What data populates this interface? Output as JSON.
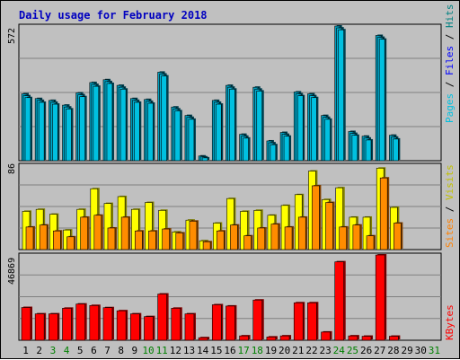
{
  "chart_data": {
    "type": "bar",
    "title": "Daily usage for February 2018",
    "colors": {
      "pages": "#00c0e0",
      "pages_shadow": "#0a6070",
      "hits": "#00a0c0",
      "files": "#00b4d8",
      "visits": "#ffff00",
      "visits_shadow": "#808000",
      "sites": "#ff8c00",
      "sites_shadow": "#804000",
      "kbytes": "#ff0000",
      "kbytes_shadow": "#800000",
      "title": "#0000c0",
      "label_pages": "#00c0e0",
      "label_files": "#0000ff",
      "label_hits": "#008080",
      "label_visits": "#c0c000",
      "label_sites": "#ff8000",
      "label_kbytes": "#ff0000",
      "weekend_day": "#008000",
      "weekday": "#000000"
    },
    "categories": [
      "1",
      "2",
      "3",
      "4",
      "5",
      "6",
      "7",
      "8",
      "9",
      "10",
      "11",
      "12",
      "13",
      "14",
      "15",
      "16",
      "17",
      "18",
      "19",
      "20",
      "21",
      "22",
      "23",
      "24",
      "25",
      "26",
      "27",
      "28",
      "29",
      "30",
      "31"
    ],
    "weekend_days": [
      "3",
      "4",
      "10",
      "11",
      "17",
      "18",
      "24",
      "25",
      "31"
    ],
    "panels": [
      {
        "id": "hits_files_pages",
        "ymax_label": "572",
        "ymax": 572,
        "axis_labels": [
          "Pages",
          "Files",
          "Hits"
        ],
        "series": [
          {
            "name": "Hits",
            "values": [
              284,
              264,
              256,
              236,
              288,
              332,
              344,
              320,
              264,
              260,
              376,
              228,
              192,
              20,
              256,
              320,
              112,
              312,
              84,
              120,
              292,
              284,
              192,
              572,
              124,
              104,
              532,
              108,
              0,
              0,
              0
            ]
          },
          {
            "name": "Files",
            "values": [
              276,
              256,
              248,
              228,
              280,
              324,
              336,
              312,
              256,
              252,
              368,
              220,
              184,
              16,
              248,
              312,
              104,
              304,
              76,
              112,
              284,
              276,
              184,
              564,
              116,
              96,
              524,
              100,
              0,
              0,
              0
            ]
          },
          {
            "name": "Pages",
            "values": [
              268,
              248,
              240,
              220,
              272,
              316,
              328,
              304,
              248,
              244,
              360,
              212,
              176,
              12,
              240,
              304,
              96,
              296,
              68,
              104,
              276,
              268,
              176,
              556,
              108,
              88,
              516,
              92,
              0,
              0,
              0
            ]
          }
        ]
      },
      {
        "id": "visits_sites",
        "ymax_label": "86",
        "ymax": 86,
        "axis_labels": [
          "Sites",
          "Visits"
        ],
        "series": [
          {
            "name": "Visits",
            "values": [
              39,
              41,
              36,
              20,
              41,
              62,
              47,
              54,
              41,
              48,
              40,
              18,
              30,
              9,
              27,
              52,
              39,
              40,
              35,
              45,
              56,
              80,
              51,
              63,
              33,
              33,
              83,
              43,
              0,
              0,
              0
            ]
          },
          {
            "name": "Sites",
            "values": [
              23,
              25,
              19,
              13,
              33,
              35,
              22,
              33,
              19,
              19,
              21,
              17,
              29,
              8,
              19,
              25,
              14,
              22,
              26,
              23,
              33,
              65,
              48,
              23,
              25,
              14,
              73,
              27,
              0,
              0,
              0
            ]
          }
        ]
      },
      {
        "id": "kbytes",
        "ymax_label": "46869",
        "ymax": 46869,
        "axis_labels": [
          "KBytes"
        ],
        "series": [
          {
            "name": "KBytes",
            "values": [
              18000,
              14500,
              14500,
              17600,
              19900,
              19100,
              17900,
              16200,
              14500,
              13000,
              25400,
              17600,
              14500,
              1400,
              19500,
              18800,
              2400,
              22100,
              1800,
              2400,
              20600,
              20600,
              4500,
              43100,
              2400,
              2200,
              46869,
              2200,
              0,
              0,
              0
            ]
          }
        ]
      }
    ]
  }
}
